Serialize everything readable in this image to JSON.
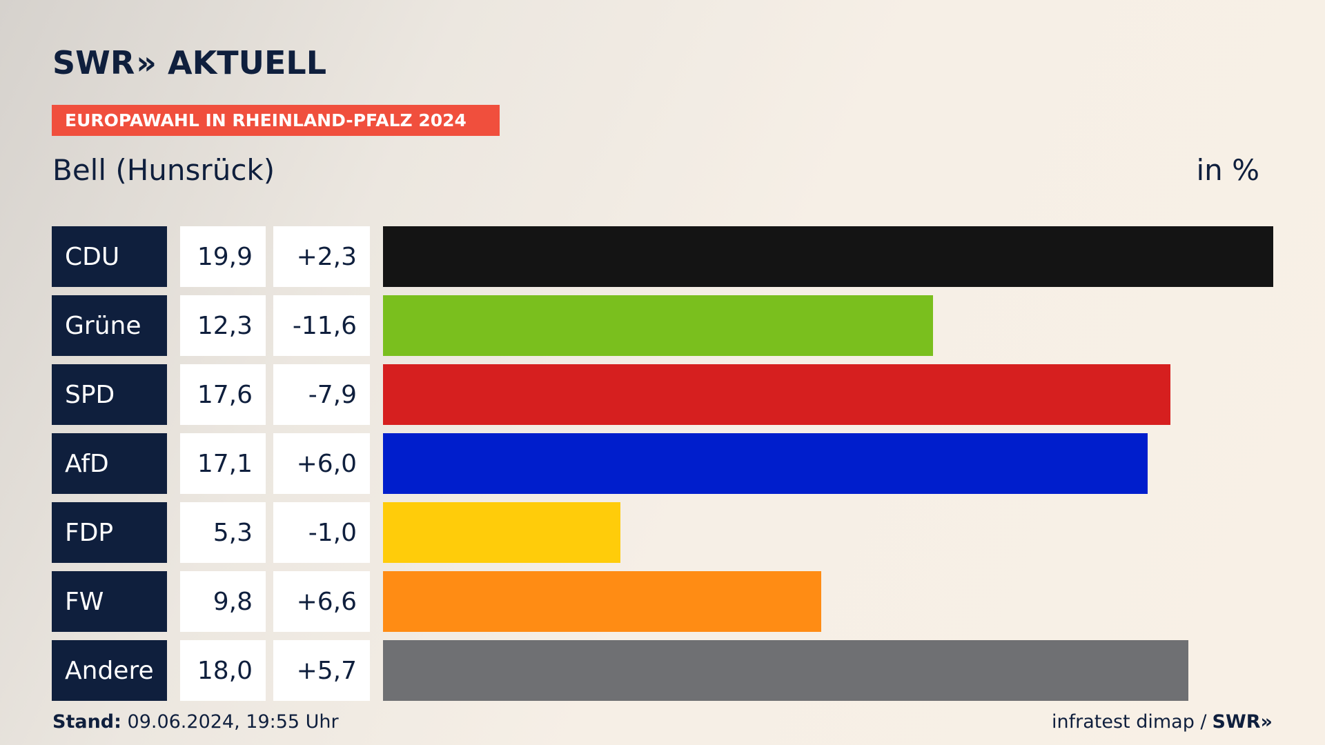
{
  "header": {
    "logo_text": "SWR",
    "logo_chevrons": "»",
    "logo_suffix": "AKTUELL",
    "badge": "EUROPAWAHL IN RHEINLAND-PFALZ 2024",
    "subtitle": "Bell (Hunsrück)",
    "unit": "in %"
  },
  "colors": {
    "navy": "#0f1f3d",
    "badge": "#f04f3d"
  },
  "chart_data": {
    "type": "bar",
    "orientation": "horizontal",
    "title": "EUROPAWAHL IN RHEINLAND-PFALZ 2024",
    "subtitle": "Bell (Hunsrück)",
    "unit": "in %",
    "categories": [
      "CDU",
      "Grüne",
      "SPD",
      "AfD",
      "FDP",
      "FW",
      "Andere"
    ],
    "values": [
      19.9,
      12.3,
      17.6,
      17.1,
      5.3,
      9.8,
      18.0
    ],
    "value_labels": [
      "19,9",
      "12,3",
      "17,6",
      "17,1",
      "5,3",
      "9,8",
      "18,0"
    ],
    "changes": [
      2.3,
      -11.6,
      -7.9,
      6.0,
      -1.0,
      6.6,
      5.7
    ],
    "change_labels": [
      "+2,3",
      "-11,6",
      "-7,9",
      "+6,0",
      "-1,0",
      "+6,6",
      "+5,7"
    ],
    "bar_colors": [
      "#141414",
      "#7abf1e",
      "#d61f1f",
      "#001ecc",
      "#ffcc0a",
      "#ff8c14",
      "#6f7073"
    ],
    "xlim": [
      0,
      19.9
    ],
    "grid": false,
    "legend": "none"
  },
  "footer": {
    "stand_label": "Stand:",
    "stand_value": "09.06.2024, 19:55 Uhr",
    "source": "infratest dimap /",
    "source_logo": "SWR»"
  }
}
